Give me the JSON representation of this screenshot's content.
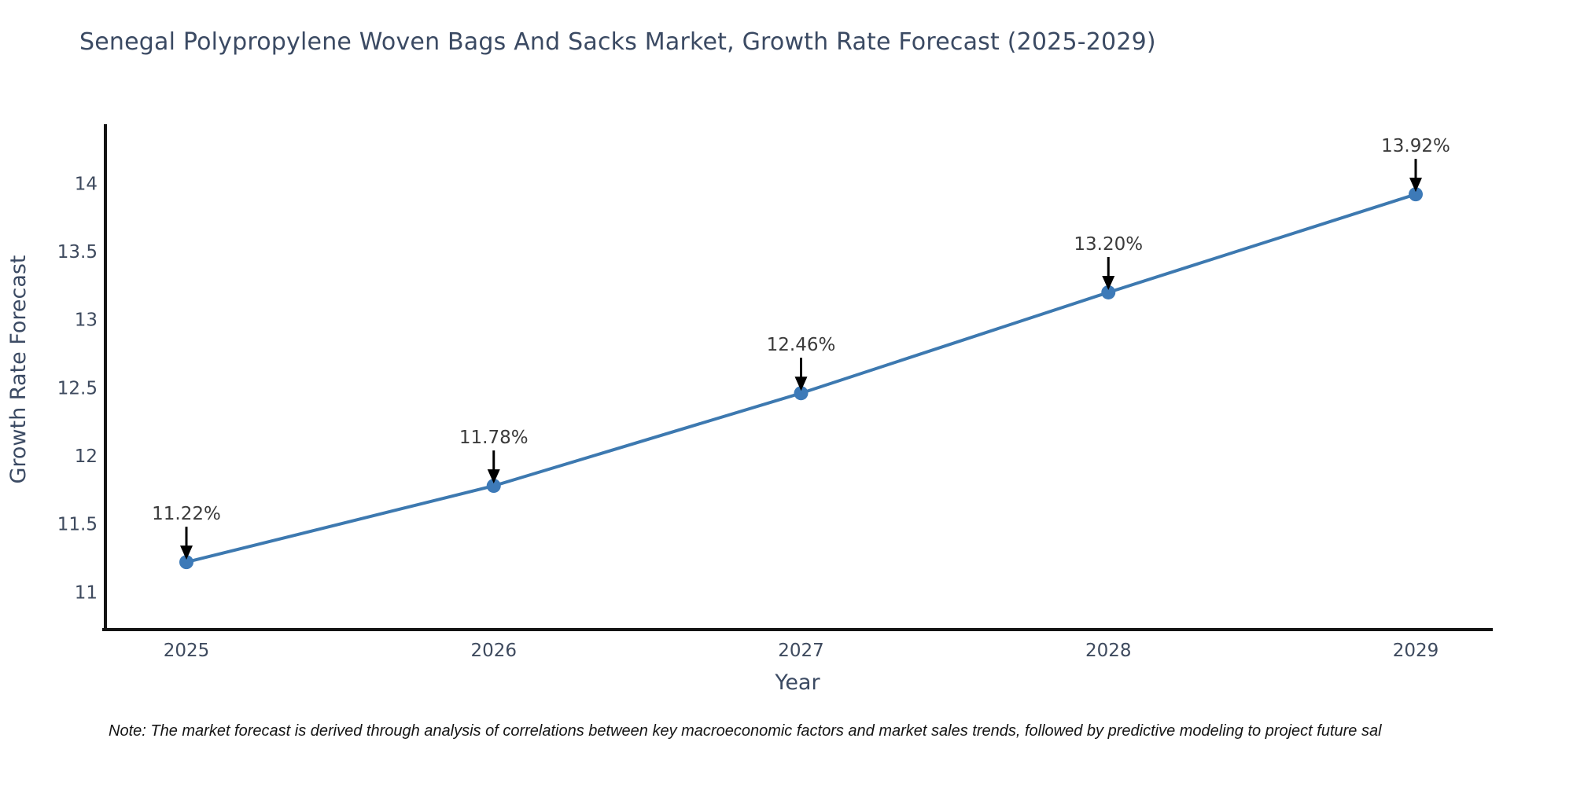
{
  "chart_data": {
    "type": "line",
    "title": "Senegal Polypropylene Woven Bags And Sacks Market, Growth Rate Forecast (2025-2029)",
    "xlabel": "Year",
    "ylabel": "Growth Rate Forecast",
    "x": [
      2025,
      2026,
      2027,
      2028,
      2029
    ],
    "series": [
      {
        "name": "Growth Rate Forecast",
        "values": [
          11.22,
          11.78,
          12.46,
          13.2,
          13.92
        ],
        "point_labels": [
          "11.22%",
          "11.78%",
          "12.46%",
          "13.20%",
          "13.92%"
        ]
      }
    ],
    "yticks": [
      "11",
      "11.5",
      "12",
      "12.5",
      "13",
      "13.5",
      "14"
    ],
    "ytick_values": [
      11,
      11.5,
      12,
      12.5,
      13,
      13.5,
      14
    ],
    "ylim": [
      10.72,
      14.42
    ],
    "xlim": [
      2024.73,
      2029.25
    ],
    "grid": false,
    "legend": "none",
    "line_color": "#3d79b0",
    "marker_color": "#3d7ab8",
    "arrow_color": "#000000",
    "spine_color": "#141414"
  },
  "note": {
    "text": "Note: The market forecast is derived through analysis of correlations between key macroeconomic factors and market sales trends, followed by predictive modeling to project future sal"
  }
}
